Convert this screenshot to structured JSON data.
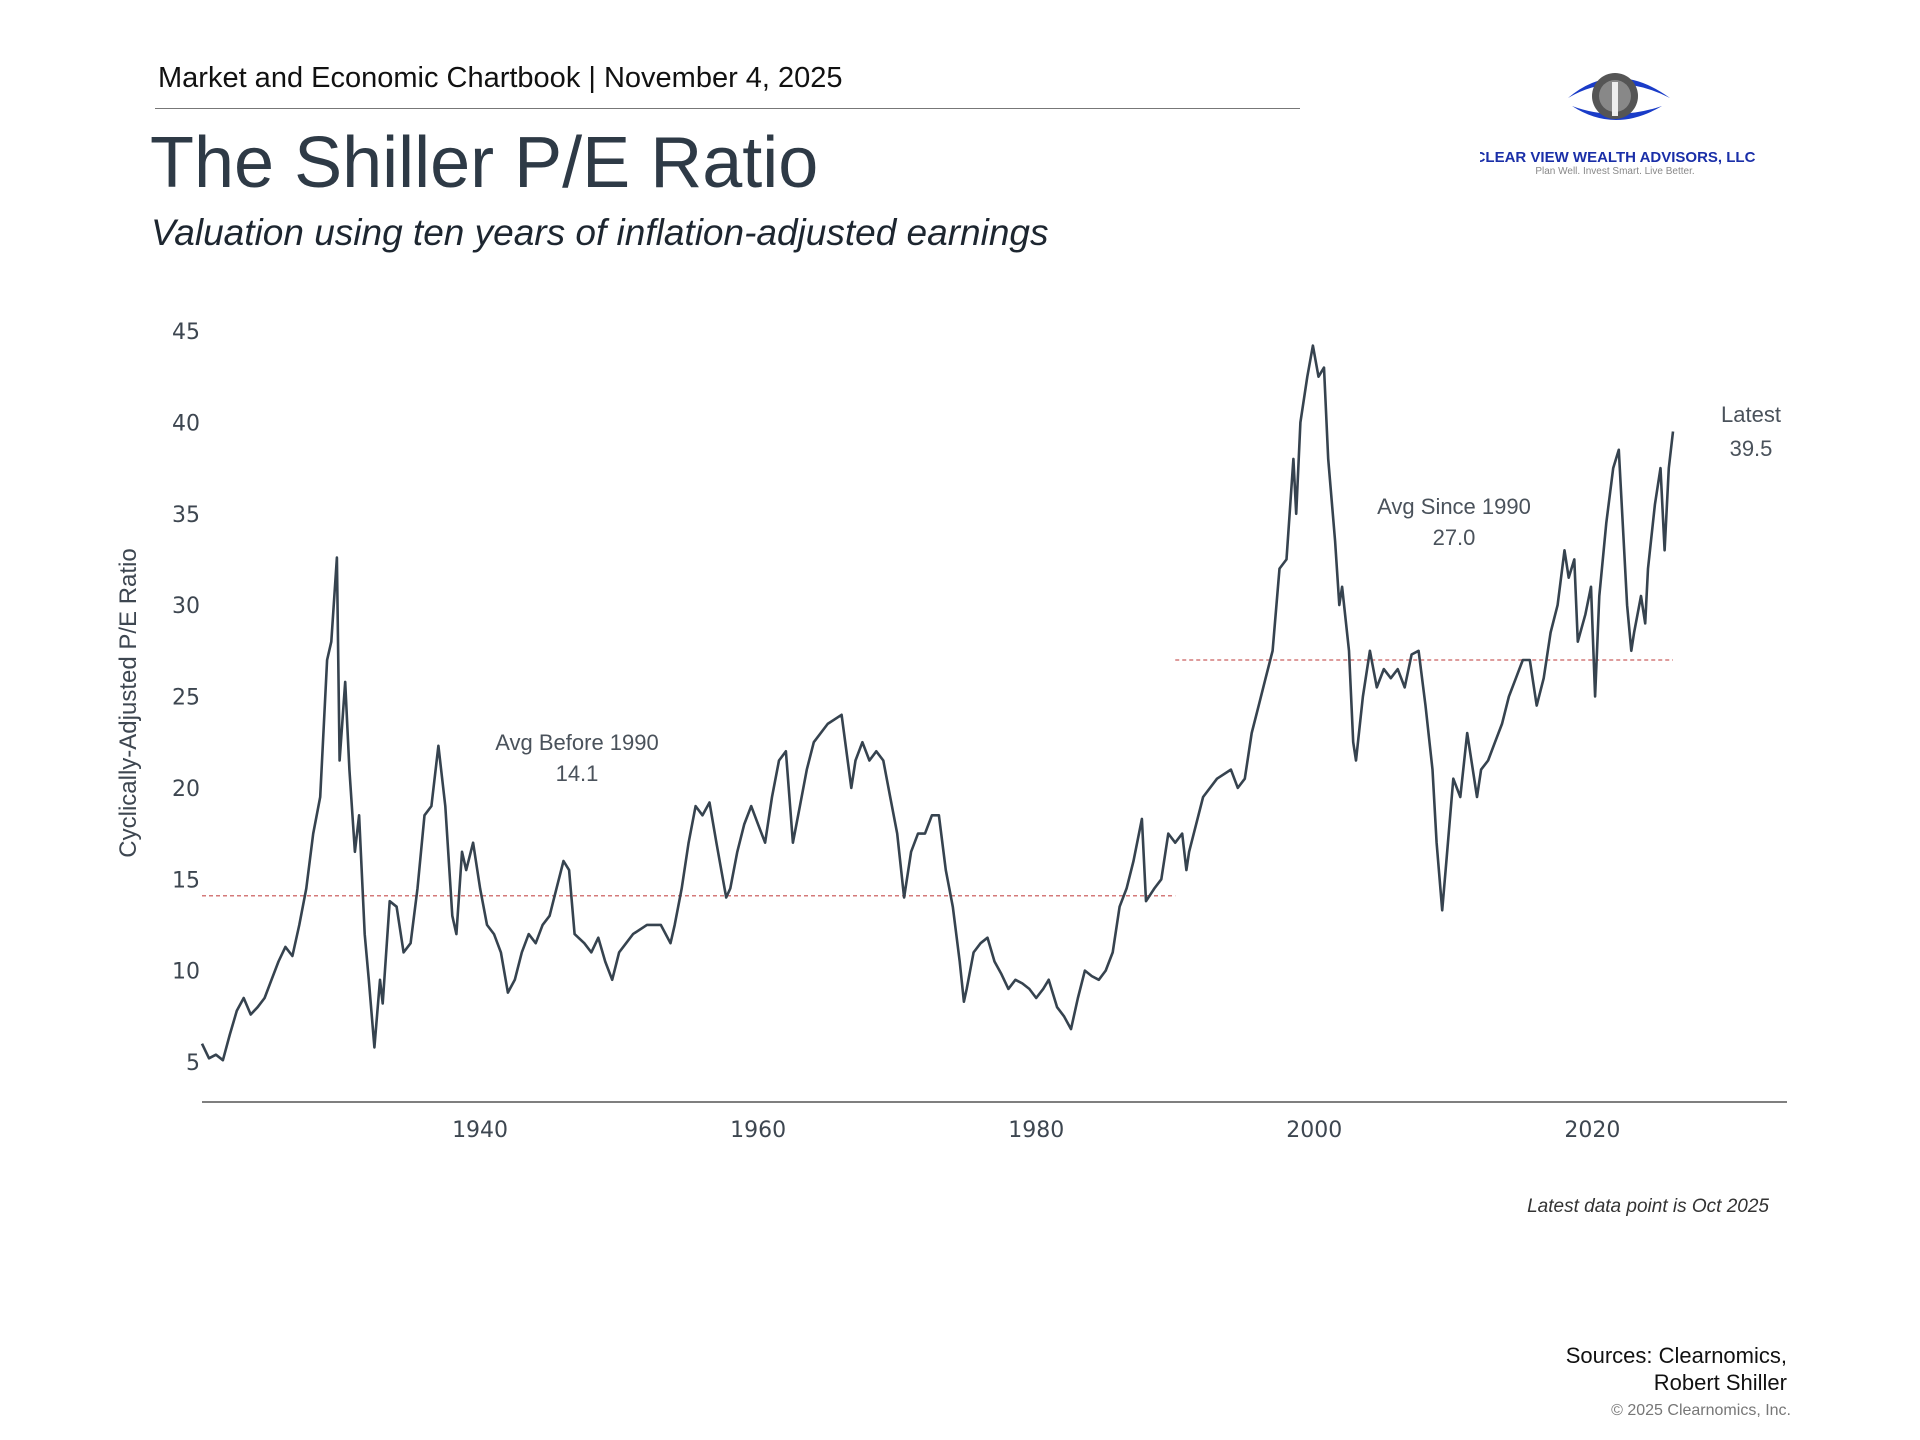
{
  "header": {
    "text": "Market and Economic Chartbook | November 4, 2025"
  },
  "title": "The Shiller P/E Ratio",
  "subtitle": "Valuation using ten years of inflation-adjusted earnings",
  "logo": {
    "name": "CLEAR VIEW WEALTH ADVISORS, LLC",
    "tagline": "Plan Well. Invest Smart. Live Better.",
    "color": "#1a2fa8"
  },
  "footnote": "Latest data point is Oct 2025",
  "sources": [
    "Sources: Clearnomics,",
    "Robert Shiller"
  ],
  "copyright": "© 2025 Clearnomics, Inc.",
  "chart_data": {
    "type": "line",
    "title": "",
    "xlabel": "",
    "ylabel": "Cyclically-Adjusted P/E Ratio",
    "xlim": [
      1920,
      2034
    ],
    "ylim": [
      3,
      45
    ],
    "x_ticks": [
      1940,
      1960,
      1980,
      2000,
      2020
    ],
    "y_ticks": [
      5,
      10,
      15,
      20,
      25,
      30,
      35,
      40,
      45
    ],
    "grid": false,
    "line_color": "#36434f",
    "avg_line_color": "#d47a7a",
    "series": [
      {
        "points": [
          [
            1920.0,
            6.0
          ],
          [
            1920.5,
            5.2
          ],
          [
            1921.0,
            5.4
          ],
          [
            1921.5,
            5.1
          ],
          [
            1922.0,
            6.5
          ],
          [
            1922.5,
            7.8
          ],
          [
            1923.0,
            8.5
          ],
          [
            1923.5,
            7.6
          ],
          [
            1924.0,
            8.0
          ],
          [
            1924.5,
            8.5
          ],
          [
            1925.0,
            9.5
          ],
          [
            1925.5,
            10.5
          ],
          [
            1926.0,
            11.3
          ],
          [
            1926.5,
            10.8
          ],
          [
            1927.0,
            12.5
          ],
          [
            1927.5,
            14.5
          ],
          [
            1928.0,
            17.5
          ],
          [
            1928.5,
            19.5
          ],
          [
            1929.0,
            27.0
          ],
          [
            1929.3,
            28.0
          ],
          [
            1929.7,
            32.6
          ],
          [
            1929.9,
            21.5
          ],
          [
            1930.3,
            25.8
          ],
          [
            1930.6,
            21.0
          ],
          [
            1931.0,
            16.5
          ],
          [
            1931.3,
            18.5
          ],
          [
            1931.7,
            12.0
          ],
          [
            1932.0,
            9.5
          ],
          [
            1932.4,
            5.8
          ],
          [
            1932.8,
            9.5
          ],
          [
            1933.0,
            8.2
          ],
          [
            1933.5,
            13.8
          ],
          [
            1934.0,
            13.5
          ],
          [
            1934.5,
            11.0
          ],
          [
            1935.0,
            11.5
          ],
          [
            1935.5,
            14.5
          ],
          [
            1936.0,
            18.5
          ],
          [
            1936.5,
            19.0
          ],
          [
            1937.0,
            22.3
          ],
          [
            1937.5,
            19.0
          ],
          [
            1938.0,
            13.0
          ],
          [
            1938.3,
            12.0
          ],
          [
            1938.7,
            16.5
          ],
          [
            1939.0,
            15.5
          ],
          [
            1939.5,
            17.0
          ],
          [
            1940.0,
            14.5
          ],
          [
            1940.5,
            12.5
          ],
          [
            1941.0,
            12.0
          ],
          [
            1941.5,
            11.0
          ],
          [
            1942.0,
            8.8
          ],
          [
            1942.5,
            9.5
          ],
          [
            1943.0,
            11.0
          ],
          [
            1943.5,
            12.0
          ],
          [
            1944.0,
            11.5
          ],
          [
            1944.5,
            12.5
          ],
          [
            1945.0,
            13.0
          ],
          [
            1945.5,
            14.5
          ],
          [
            1946.0,
            16.0
          ],
          [
            1946.4,
            15.5
          ],
          [
            1946.8,
            12.0
          ],
          [
            1947.5,
            11.5
          ],
          [
            1948.0,
            11.0
          ],
          [
            1948.5,
            11.8
          ],
          [
            1949.0,
            10.5
          ],
          [
            1949.5,
            9.5
          ],
          [
            1950.0,
            11.0
          ],
          [
            1950.5,
            11.5
          ],
          [
            1951.0,
            12.0
          ],
          [
            1952.0,
            12.5
          ],
          [
            1953.0,
            12.5
          ],
          [
            1953.7,
            11.5
          ],
          [
            1954.0,
            12.5
          ],
          [
            1954.5,
            14.5
          ],
          [
            1955.0,
            17.0
          ],
          [
            1955.5,
            19.0
          ],
          [
            1956.0,
            18.5
          ],
          [
            1956.5,
            19.2
          ],
          [
            1957.0,
            17.0
          ],
          [
            1957.7,
            14.0
          ],
          [
            1958.0,
            14.5
          ],
          [
            1958.5,
            16.5
          ],
          [
            1959.0,
            18.0
          ],
          [
            1959.5,
            19.0
          ],
          [
            1960.0,
            18.0
          ],
          [
            1960.5,
            17.0
          ],
          [
            1961.0,
            19.5
          ],
          [
            1961.5,
            21.5
          ],
          [
            1962.0,
            22.0
          ],
          [
            1962.5,
            17.0
          ],
          [
            1963.0,
            19.0
          ],
          [
            1963.5,
            21.0
          ],
          [
            1964.0,
            22.5
          ],
          [
            1965.0,
            23.5
          ],
          [
            1966.0,
            24.0
          ],
          [
            1966.7,
            20.0
          ],
          [
            1967.0,
            21.5
          ],
          [
            1967.5,
            22.5
          ],
          [
            1968.0,
            21.5
          ],
          [
            1968.5,
            22.0
          ],
          [
            1969.0,
            21.5
          ],
          [
            1969.5,
            19.5
          ],
          [
            1970.0,
            17.5
          ],
          [
            1970.5,
            14.0
          ],
          [
            1971.0,
            16.5
          ],
          [
            1971.5,
            17.5
          ],
          [
            1972.0,
            17.5
          ],
          [
            1972.5,
            18.5
          ],
          [
            1973.0,
            18.5
          ],
          [
            1973.5,
            15.5
          ],
          [
            1974.0,
            13.5
          ],
          [
            1974.5,
            10.5
          ],
          [
            1974.8,
            8.3
          ],
          [
            1975.0,
            9.0
          ],
          [
            1975.5,
            11.0
          ],
          [
            1976.0,
            11.5
          ],
          [
            1976.5,
            11.8
          ],
          [
            1977.0,
            10.5
          ],
          [
            1977.5,
            9.8
          ],
          [
            1978.0,
            9.0
          ],
          [
            1978.5,
            9.5
          ],
          [
            1979.0,
            9.3
          ],
          [
            1979.5,
            9.0
          ],
          [
            1980.0,
            8.5
          ],
          [
            1980.5,
            9.0
          ],
          [
            1980.9,
            9.5
          ],
          [
            1981.5,
            8.0
          ],
          [
            1982.0,
            7.5
          ],
          [
            1982.5,
            6.8
          ],
          [
            1983.0,
            8.5
          ],
          [
            1983.5,
            10.0
          ],
          [
            1984.0,
            9.7
          ],
          [
            1984.5,
            9.5
          ],
          [
            1985.0,
            10.0
          ],
          [
            1985.5,
            11.0
          ],
          [
            1986.0,
            13.5
          ],
          [
            1986.5,
            14.5
          ],
          [
            1987.0,
            16.0
          ],
          [
            1987.6,
            18.3
          ],
          [
            1987.9,
            13.8
          ],
          [
            1988.5,
            14.5
          ],
          [
            1989.0,
            15.0
          ],
          [
            1989.5,
            17.5
          ],
          [
            1990.0,
            17.0
          ],
          [
            1990.5,
            17.5
          ],
          [
            1990.8,
            15.5
          ],
          [
            1991.0,
            16.5
          ],
          [
            1991.5,
            18.0
          ],
          [
            1992.0,
            19.5
          ],
          [
            1993.0,
            20.5
          ],
          [
            1994.0,
            21.0
          ],
          [
            1994.5,
            20.0
          ],
          [
            1995.0,
            20.5
          ],
          [
            1995.5,
            23.0
          ],
          [
            1996.0,
            24.5
          ],
          [
            1996.5,
            26.0
          ],
          [
            1997.0,
            27.5
          ],
          [
            1997.5,
            32.0
          ],
          [
            1998.0,
            32.5
          ],
          [
            1998.5,
            38.0
          ],
          [
            1998.7,
            35.0
          ],
          [
            1999.0,
            40.0
          ],
          [
            1999.5,
            42.5
          ],
          [
            1999.9,
            44.2
          ],
          [
            2000.3,
            42.5
          ],
          [
            2000.7,
            43.0
          ],
          [
            2001.0,
            38.0
          ],
          [
            2001.5,
            33.5
          ],
          [
            2001.8,
            30.0
          ],
          [
            2002.0,
            31.0
          ],
          [
            2002.5,
            27.5
          ],
          [
            2002.8,
            22.5
          ],
          [
            2003.0,
            21.5
          ],
          [
            2003.5,
            25.0
          ],
          [
            2004.0,
            27.5
          ],
          [
            2004.5,
            25.5
          ],
          [
            2005.0,
            26.5
          ],
          [
            2005.5,
            26.0
          ],
          [
            2006.0,
            26.5
          ],
          [
            2006.5,
            25.5
          ],
          [
            2007.0,
            27.3
          ],
          [
            2007.5,
            27.5
          ],
          [
            2008.0,
            24.5
          ],
          [
            2008.5,
            21.0
          ],
          [
            2008.8,
            17.0
          ],
          [
            2009.2,
            13.3
          ],
          [
            2009.5,
            16.0
          ],
          [
            2010.0,
            20.5
          ],
          [
            2010.5,
            19.5
          ],
          [
            2011.0,
            23.0
          ],
          [
            2011.7,
            19.5
          ],
          [
            2012.0,
            21.0
          ],
          [
            2012.5,
            21.5
          ],
          [
            2013.0,
            22.5
          ],
          [
            2013.5,
            23.5
          ],
          [
            2014.0,
            25.0
          ],
          [
            2014.5,
            26.0
          ],
          [
            2015.0,
            27.0
          ],
          [
            2015.5,
            27.0
          ],
          [
            2016.0,
            24.5
          ],
          [
            2016.5,
            26.0
          ],
          [
            2017.0,
            28.5
          ],
          [
            2017.5,
            30.0
          ],
          [
            2018.0,
            33.0
          ],
          [
            2018.3,
            31.5
          ],
          [
            2018.7,
            32.5
          ],
          [
            2018.95,
            28.0
          ],
          [
            2019.5,
            29.5
          ],
          [
            2019.9,
            31.0
          ],
          [
            2020.2,
            25.0
          ],
          [
            2020.5,
            30.5
          ],
          [
            2021.0,
            34.5
          ],
          [
            2021.5,
            37.5
          ],
          [
            2021.9,
            38.5
          ],
          [
            2022.5,
            30.0
          ],
          [
            2022.8,
            27.5
          ],
          [
            2023.0,
            28.5
          ],
          [
            2023.5,
            30.5
          ],
          [
            2023.8,
            29.0
          ],
          [
            2024.0,
            32.0
          ],
          [
            2024.5,
            35.5
          ],
          [
            2024.9,
            37.5
          ],
          [
            2025.2,
            33.0
          ],
          [
            2025.5,
            37.5
          ],
          [
            2025.8,
            39.5
          ]
        ]
      }
    ],
    "reference_lines": [
      {
        "label": "Avg Before 1990",
        "value_label": "14.1",
        "y": 14.1,
        "x_range": [
          1920,
          1990
        ]
      },
      {
        "label": "Avg Since 1990",
        "value_label": "27.0",
        "y": 27.0,
        "x_range": [
          1990,
          2025.8
        ]
      }
    ],
    "annotations": [
      {
        "label": "Latest",
        "value_label": "39.5"
      }
    ]
  }
}
